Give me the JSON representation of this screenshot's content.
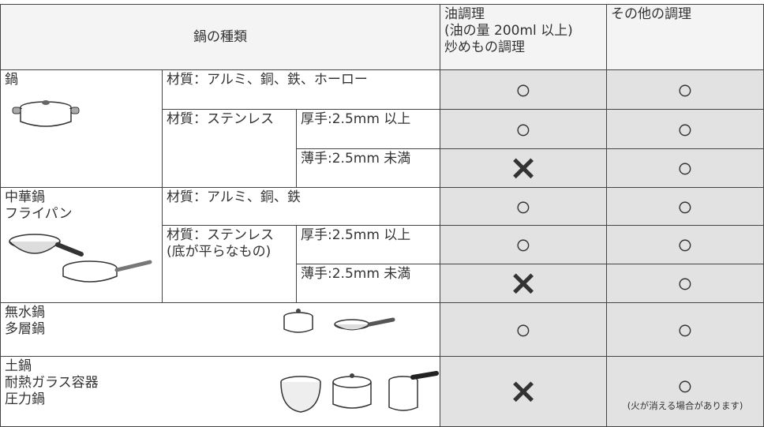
{
  "table": {
    "header": [
      "鍋の種類",
      "油調理\n(油の量 200ml 以上)\n炒めもの調理",
      "その他の調理"
    ],
    "rows": [
      [
        "鍋",
        "材質：アルミ、銅、鉄、ホーロー",
        "○",
        "○"
      ],
      [
        "材質：ステンレス",
        "厚手:2.5mm 以上",
        "○",
        "○"
      ],
      [
        "薄手:2.5mm 未満",
        "×",
        "○"
      ],
      [
        "中華鍋\nフライパン",
        "材質：アルミ、銅、鉄",
        "○",
        "○"
      ],
      [
        "材質：ステンレス\n(底が平らなもの)",
        "厚手:2.5mm 以上",
        "○",
        "○"
      ],
      [
        "薄手:2.5mm 未満",
        "×",
        "○"
      ],
      [
        "無水鍋\n多層鍋",
        "○",
        "○"
      ],
      [
        "土鍋\n耐熱ガラス容器\n圧力鍋",
        "×",
        "○",
        "(火が消える場合があります)"
      ]
    ]
  }
}
